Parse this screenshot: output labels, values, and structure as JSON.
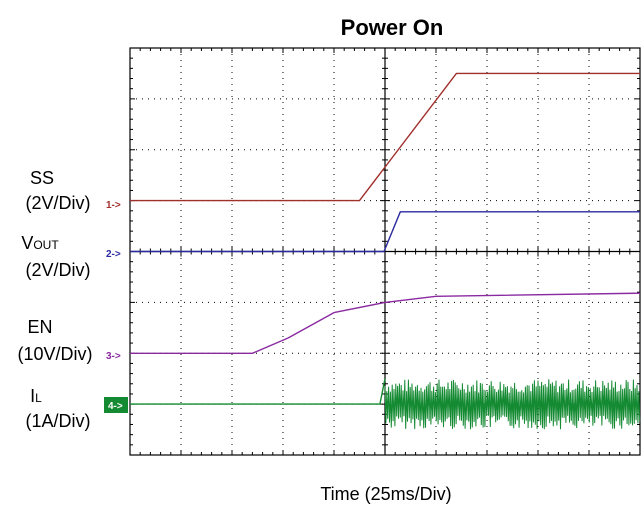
{
  "chart_data": {
    "type": "line",
    "title": "Power On",
    "xlabel": "Time (25ms/Div)",
    "x_divisions": 10,
    "y_divisions": 8,
    "grid": true,
    "channels": [
      {
        "id": 1,
        "marker": "1->",
        "name": "SS",
        "scale": "(2V/Div)",
        "color": "#a0302c",
        "baseline_div": 5.0,
        "points": [
          [
            0,
            0
          ],
          [
            4.5,
            0
          ],
          [
            6.4,
            2.5
          ],
          [
            10,
            2.5
          ]
        ]
      },
      {
        "id": 2,
        "marker": "2->",
        "name_main": "V",
        "name_sub": "OUT",
        "scale": "(2V/Div)",
        "color": "#2a2aa0",
        "baseline_div": 4.0,
        "points": [
          [
            0,
            0
          ],
          [
            4.98,
            0
          ],
          [
            5.3,
            0.78
          ],
          [
            10,
            0.78
          ]
        ]
      },
      {
        "id": 3,
        "marker": "3->",
        "name": "EN",
        "scale": "(10V/Div)",
        "color": "#8a2aa0",
        "baseline_div": 2.0,
        "points": [
          [
            0,
            0
          ],
          [
            2.4,
            0
          ],
          [
            3.1,
            0.3
          ],
          [
            4,
            0.8
          ],
          [
            5,
            1.0
          ],
          [
            6,
            1.12
          ],
          [
            10,
            1.18
          ]
        ]
      },
      {
        "id": 4,
        "marker": "4->",
        "name_main": "I",
        "name_sub": "L",
        "scale": "(1A/Div)",
        "color": "#148a32",
        "baseline_div": 1.0,
        "points": [
          [
            0,
            0
          ],
          [
            4.9,
            0
          ],
          [
            5.0,
            0.5
          ]
        ],
        "switching_start": 5.0,
        "switching_amplitude_div": 0.9
      }
    ]
  }
}
